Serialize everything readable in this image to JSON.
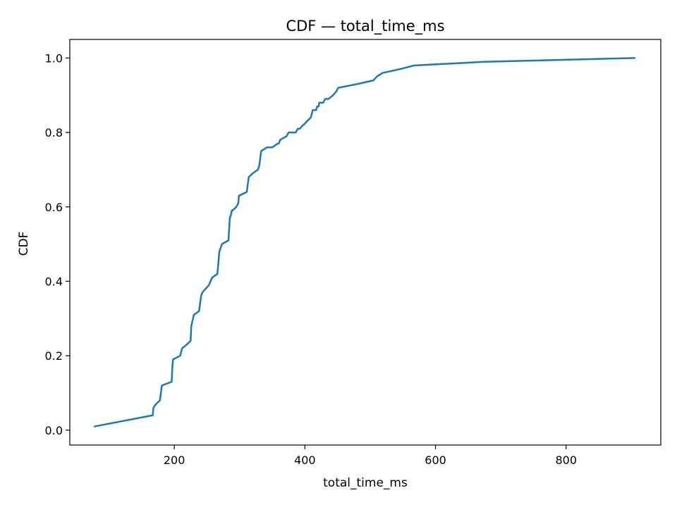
{
  "chart_data": {
    "type": "line",
    "title": "CDF — total_time_ms",
    "xlabel": "total_time_ms",
    "ylabel": "CDF",
    "xlim": [
      40,
      945
    ],
    "ylim": [
      -0.04,
      1.05
    ],
    "xticks": [
      200,
      400,
      600,
      800
    ],
    "xtick_labels": [
      "200",
      "400",
      "600",
      "800"
    ],
    "yticks": [
      0.0,
      0.2,
      0.4,
      0.6,
      0.8,
      1.0
    ],
    "ytick_labels": [
      "0.0",
      "0.2",
      "0.4",
      "0.6",
      "0.8",
      "1.0"
    ],
    "grid": false,
    "color": "#1f77b4",
    "series": [
      {
        "x": [
          78,
          167,
          168,
          172,
          178,
          181,
          196,
          197,
          198,
          209,
          212,
          219,
          225,
          226,
          230,
          238,
          241,
          243,
          248,
          253,
          258,
          266,
          268,
          269,
          271,
          273,
          283,
          285,
          287,
          288,
          289,
          295,
          298,
          299,
          311,
          314,
          320,
          328,
          330,
          333,
          342,
          350,
          358,
          360,
          362,
          372,
          375,
          384,
          386,
          389,
          392,
          397,
          398,
          403,
          409,
          412,
          417,
          419,
          421,
          422,
          428,
          431,
          436,
          443,
          448,
          451,
          480,
          505,
          510,
          519,
          545,
          567,
          675,
          905
        ],
        "y": [
          0.01,
          0.04,
          0.06,
          0.07,
          0.08,
          0.12,
          0.13,
          0.17,
          0.19,
          0.2,
          0.22,
          0.23,
          0.24,
          0.28,
          0.31,
          0.32,
          0.36,
          0.37,
          0.38,
          0.39,
          0.41,
          0.42,
          0.46,
          0.48,
          0.49,
          0.5,
          0.51,
          0.57,
          0.58,
          0.59,
          0.59,
          0.6,
          0.61,
          0.63,
          0.64,
          0.68,
          0.69,
          0.7,
          0.71,
          0.75,
          0.76,
          0.76,
          0.77,
          0.77,
          0.78,
          0.79,
          0.8,
          0.8,
          0.8,
          0.81,
          0.81,
          0.82,
          0.82,
          0.83,
          0.84,
          0.86,
          0.86,
          0.87,
          0.87,
          0.88,
          0.88,
          0.89,
          0.89,
          0.9,
          0.91,
          0.92,
          0.93,
          0.94,
          0.95,
          0.96,
          0.97,
          0.98,
          0.99,
          1.0
        ]
      }
    ]
  }
}
